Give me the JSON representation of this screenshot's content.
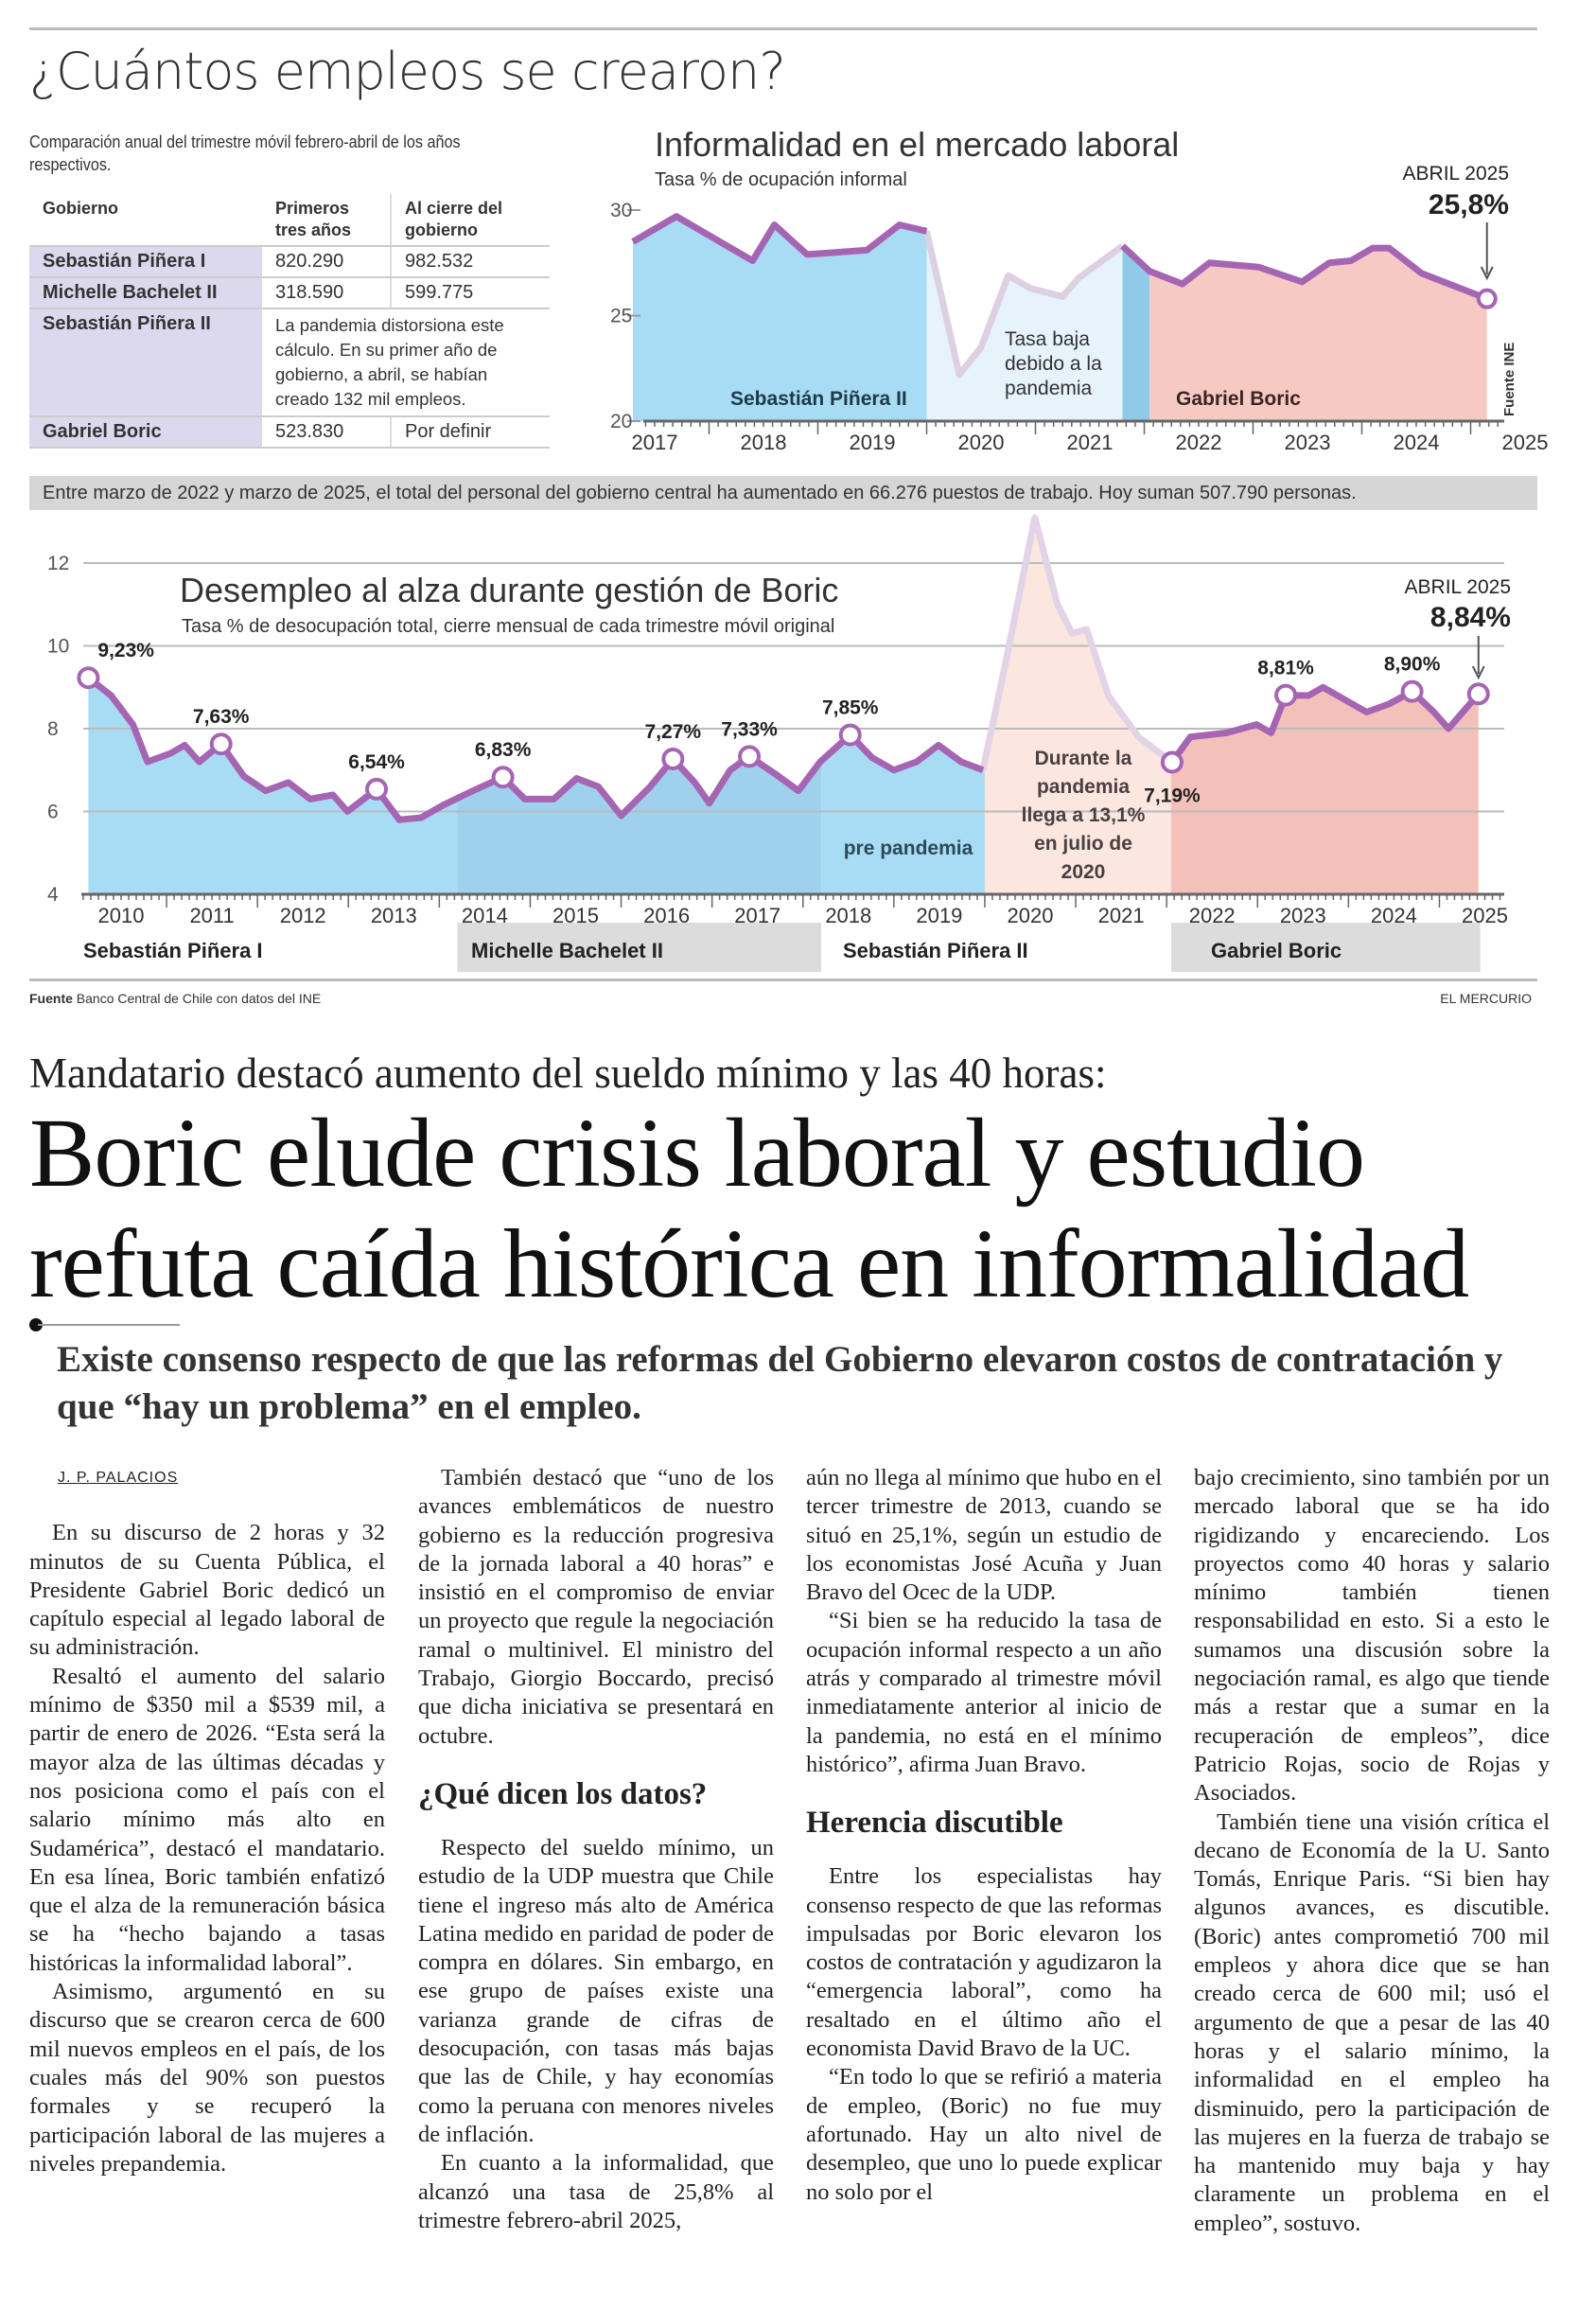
{
  "infographic": {
    "title": "¿Cuántos empleos se crearon?",
    "table_note": "Comparación anual del trimestre móvil febrero-abril de los años respectivos.",
    "table": {
      "headers": [
        "Gobierno",
        "Primeros tres años",
        "Al cierre del gobierno"
      ],
      "rows": [
        {
          "gobierno": "Sebastián Piñera I",
          "primeros": "820.290",
          "cierre": "982.532"
        },
        {
          "gobierno": "Michelle Bachelet II",
          "primeros": "318.590",
          "cierre": "599.775"
        },
        {
          "gobierno": "Sebastián Piñera II",
          "note": "La pandemia distorsiona este cálculo. En su primer año de gobierno, a abril, se habían creado 132 mil empleos."
        },
        {
          "gobierno": "Gabriel Boric",
          "primeros": "523.830",
          "cierre": "Por definir"
        }
      ]
    },
    "banner": "Entre marzo de 2022 y marzo de 2025, el total del personal del gobierno central ha aumentado en 66.276 puestos de trabajo. Hoy suman 507.790 personas.",
    "source_left_label": "Fuente",
    "source_left": "Banco Central de Chile con datos del INE",
    "source_right": "EL MERCURIO"
  },
  "chart_data": [
    {
      "type": "area",
      "title": "Informalidad en el mercado laboral",
      "subtitle": "Tasa % de ocupación informal",
      "source": "Fuente INE",
      "ylim": [
        20,
        30
      ],
      "yticks": [
        "20",
        "25",
        "30"
      ],
      "xticks": [
        "2017",
        "2018",
        "2019",
        "2020",
        "2021",
        "2022",
        "2023",
        "2024",
        "2025"
      ],
      "callout": {
        "label": "ABRIL 2025",
        "value": "25,8%"
      },
      "annotation": "Tasa baja debido a la pandemia",
      "regions": [
        {
          "name": "Sebastián Piñera II",
          "from": 2017.3,
          "to": 2020.0,
          "color": "#a8dcf5"
        },
        {
          "name": "",
          "from": 2020.0,
          "to": 2021.8,
          "color": "#e6f3fb"
        },
        {
          "name": "",
          "from": 2021.8,
          "to": 2022.05,
          "color": "#8fcbe8"
        },
        {
          "name": "Gabriel Boric",
          "from": 2022.05,
          "to": 2025.15,
          "color": "#f6c9c4"
        }
      ],
      "series": [
        [
          2017.3,
          28.5
        ],
        [
          2017.7,
          29.7
        ],
        [
          2018.4,
          27.6
        ],
        [
          2018.6,
          29.3
        ],
        [
          2018.9,
          27.9
        ],
        [
          2019.45,
          28.1
        ],
        [
          2019.75,
          29.3
        ],
        [
          2020.0,
          29.0
        ],
        [
          2020.3,
          22.2
        ],
        [
          2020.5,
          23.5
        ],
        [
          2020.75,
          26.9
        ],
        [
          2020.95,
          26.3
        ],
        [
          2021.25,
          25.9
        ],
        [
          2021.4,
          26.8
        ],
        [
          2021.8,
          28.3
        ],
        [
          2022.05,
          27.1
        ],
        [
          2022.35,
          26.5
        ],
        [
          2022.6,
          27.5
        ],
        [
          2023.05,
          27.3
        ],
        [
          2023.45,
          26.6
        ],
        [
          2023.7,
          27.5
        ],
        [
          2023.9,
          27.6
        ],
        [
          2024.1,
          28.2
        ],
        [
          2024.25,
          28.2
        ],
        [
          2024.55,
          27.0
        ],
        [
          2024.85,
          26.4
        ],
        [
          2025.15,
          25.8
        ]
      ],
      "pandemic_range": [
        2020.0,
        2021.8
      ],
      "line_color": "#a565b3",
      "pandemic_line_color": "#ddd0e3"
    },
    {
      "type": "area",
      "title": "Desempleo al alza durante gestión de Boric",
      "subtitle": "Tasa % de desocupación total, cierre mensual de cada trimestre móvil original",
      "ylim": [
        4,
        12
      ],
      "yticks": [
        "4",
        "6",
        "8",
        "10",
        "12"
      ],
      "xticks": [
        "2010",
        "2011",
        "2012",
        "2013",
        "2014",
        "2015",
        "2016",
        "2017",
        "2018",
        "2019",
        "2020",
        "2021",
        "2022",
        "2023",
        "2024",
        "2025"
      ],
      "callout": {
        "label": "ABRIL 2025",
        "value": "8,84%"
      },
      "annotations": [
        "pre pandemia",
        "Durante la pandemia llega a 13,1% en julio de 2020"
      ],
      "governments": [
        "Sebastián Piñera I",
        "Michelle Bachelet II",
        "Sebastián Piñera II",
        "Gabriel Boric"
      ],
      "regions": [
        {
          "from": 2010.1,
          "to": 2014.2,
          "color": "#a8dcf5"
        },
        {
          "from": 2014.2,
          "to": 2018.2,
          "color": "#9fd0ec"
        },
        {
          "from": 2018.2,
          "to": 2020.0,
          "color": "#a8dcf5"
        },
        {
          "from": 2020.0,
          "to": 2022.05,
          "color": "#fbe6e0"
        },
        {
          "from": 2022.05,
          "to": 2025.45,
          "color": "#f4c0ba"
        }
      ],
      "series": [
        [
          2010.14,
          9.23
        ],
        [
          2010.39,
          8.8
        ],
        [
          2010.63,
          8.1
        ],
        [
          2010.79,
          7.2
        ],
        [
          2011.04,
          7.4
        ],
        [
          2011.2,
          7.6
        ],
        [
          2011.36,
          7.2
        ],
        [
          2011.6,
          7.63
        ],
        [
          2011.85,
          6.85
        ],
        [
          2012.09,
          6.5
        ],
        [
          2012.34,
          6.7
        ],
        [
          2012.58,
          6.3
        ],
        [
          2012.83,
          6.4
        ],
        [
          2012.99,
          6.0
        ],
        [
          2013.31,
          6.54
        ],
        [
          2013.56,
          5.8
        ],
        [
          2013.8,
          5.85
        ],
        [
          2014.04,
          6.15
        ],
        [
          2014.37,
          6.5
        ],
        [
          2014.7,
          6.83
        ],
        [
          2014.94,
          6.3
        ],
        [
          2015.26,
          6.3
        ],
        [
          2015.51,
          6.8
        ],
        [
          2015.75,
          6.6
        ],
        [
          2016.0,
          5.9
        ],
        [
          2016.32,
          6.6
        ],
        [
          2016.57,
          7.27
        ],
        [
          2016.81,
          6.7
        ],
        [
          2016.97,
          6.2
        ],
        [
          2017.2,
          7.0
        ],
        [
          2017.41,
          7.33
        ],
        [
          2017.7,
          6.9
        ],
        [
          2017.95,
          6.5
        ],
        [
          2018.19,
          7.2
        ],
        [
          2018.52,
          7.85
        ],
        [
          2018.76,
          7.3
        ],
        [
          2019.0,
          7.0
        ],
        [
          2019.25,
          7.2
        ],
        [
          2019.49,
          7.6
        ],
        [
          2019.74,
          7.2
        ],
        [
          2019.98,
          7.0
        ],
        [
          2020.22,
          9.5
        ],
        [
          2020.55,
          13.1
        ],
        [
          2020.8,
          11.0
        ],
        [
          2020.96,
          10.3
        ],
        [
          2021.12,
          10.4
        ],
        [
          2021.36,
          8.8
        ],
        [
          2021.69,
          7.8
        ],
        [
          2022.06,
          7.19
        ],
        [
          2022.26,
          7.8
        ],
        [
          2022.66,
          7.9
        ],
        [
          2022.99,
          8.1
        ],
        [
          2023.15,
          7.9
        ],
        [
          2023.31,
          8.81
        ],
        [
          2023.56,
          8.8
        ],
        [
          2023.72,
          9.0
        ],
        [
          2023.96,
          8.7
        ],
        [
          2024.2,
          8.4
        ],
        [
          2024.45,
          8.6
        ],
        [
          2024.7,
          8.9
        ],
        [
          2024.94,
          8.4
        ],
        [
          2025.1,
          8.0
        ],
        [
          2025.43,
          8.84
        ]
      ],
      "pandemic_range": [
        2019.98,
        2022.06
      ],
      "labeled_points": [
        {
          "x": 2010.14,
          "y": 9.23,
          "label": "9,23%"
        },
        {
          "x": 2011.6,
          "y": 7.63,
          "label": "7,63%"
        },
        {
          "x": 2013.31,
          "y": 6.54,
          "label": "6,54%"
        },
        {
          "x": 2014.7,
          "y": 6.83,
          "label": "6,83%"
        },
        {
          "x": 2016.57,
          "y": 7.27,
          "label": "7,27%"
        },
        {
          "x": 2017.41,
          "y": 7.33,
          "label": "7,33%"
        },
        {
          "x": 2018.52,
          "y": 7.85,
          "label": "7,85%"
        },
        {
          "x": 2022.06,
          "y": 7.19,
          "label": "7,19%"
        },
        {
          "x": 2023.31,
          "y": 8.81,
          "label": "8,81%"
        },
        {
          "x": 2024.7,
          "y": 8.9,
          "label": "8,90%"
        },
        {
          "x": 2025.43,
          "y": 8.84,
          "label": ""
        }
      ],
      "line_color": "#a565b3",
      "pandemic_line_color": "#e2d3e6"
    }
  ],
  "article": {
    "kicker": "Mandatario destacó aumento del sueldo mínimo y las 40 horas:",
    "headline": "Boric elude crisis laboral y estudio refuta caída histórica en informalidad",
    "subhead": "Existe consenso respecto de que las reformas del Gobierno elevaron costos de contratación y que “hay un problema” en el empleo.",
    "byline": "J. P. PALACIOS",
    "col1": [
      "En su discurso de 2 horas y 32 minutos de su Cuenta Pública, el Presidente Gabriel Boric dedicó un capítulo especial al legado laboral de su administración.",
      "Resaltó el aumento del salario mínimo de $350 mil a $539 mil, a partir de enero de 2026. “Esta será la mayor alza de las últimas décadas y nos posiciona como el país con el salario mínimo más alto en Sudamérica”, destacó el mandatario. En esa línea, Boric también enfatizó que el alza de la remuneración básica se ha “hecho bajando a tasas históricas la informalidad laboral”.",
      "Asimismo, argumentó en su discurso que se crearon cerca de 600 mil nuevos empleos en el país, de los cuales más del 90% son puestos formales y se recuperó la participación laboral de las mujeres a niveles prepandemia."
    ],
    "col2a": [
      "También destacó que “uno de los avances emblemáticos de nuestro gobierno es la reducción progresiva de la jornada laboral a 40 horas” e insistió en el compromiso de enviar un proyecto que regule la negociación ramal o multinivel. El ministro del Trabajo, Giorgio Boccardo, precisó que dicha iniciativa se presentará en octubre."
    ],
    "h1": "¿Qué dicen los datos?",
    "col2b": [
      "Respecto del sueldo mínimo, un estudio de la UDP muestra que Chile tiene el ingreso más alto de América Latina medido en paridad de poder de compra en dólares. Sin embargo, en ese grupo de países existe una varianza grande de cifras de desocupación, con tasas más bajas que las de Chile, y hay economías como la peruana con menores niveles de inflación.",
      "En cuanto a la informalidad, que alcanzó una tasa de 25,8% al trimestre febrero-abril 2025,"
    ],
    "col3a": [
      "aún no llega al mínimo que hubo en el tercer trimestre de 2013, cuando se situó en 25,1%, según un estudio de los economistas José Acuña y Juan Bravo del Ocec de la UDP.",
      "“Si bien se ha reducido la tasa de ocupación informal respecto a un año atrás y comparado al trimestre móvil inmediatamente anterior al inicio de la pandemia, no está en el mínimo histórico”, afirma Juan Bravo."
    ],
    "h2": "Herencia discutible",
    "col3b": [
      "Entre los especialistas hay consenso respecto de que las reformas impulsadas por Boric elevaron los costos de contratación y agudizaron la “emergencia laboral”, como ha resaltado en el último año el economista David Bravo de la UC.",
      "“En todo lo que se refirió a materia de empleo, (Boric) no fue muy afortunado. Hay un alto nivel de desempleo, que uno lo puede explicar no solo por el"
    ],
    "col4": [
      "bajo crecimiento, sino también por un mercado laboral que se ha ido rigidizando y encareciendo. Los proyectos como 40 horas y salario mínimo también tienen responsabilidad en esto. Si a esto le sumamos una discusión sobre la negociación ramal, es algo que tiende más a restar que a sumar en la recuperación de empleos”, dice Patricio Rojas, socio de Rojas y Asociados.",
      "También tiene una visión crítica el decano de Economía de la U. Santo Tomás, Enrique Paris. “Si bien hay algunos avances, es discutible. (Boric) antes comprometió 700 mil empleos y ahora dice que se han creado cerca de 600 mil; usó el argumento de que a pesar de las 40 horas y el salario mínimo, la informalidad en el empleo ha disminuido, pero la participación de las mujeres en la fuerza de trabajo se ha mantenido muy baja y hay claramente un problema en el empleo”, sostuvo."
    ]
  }
}
